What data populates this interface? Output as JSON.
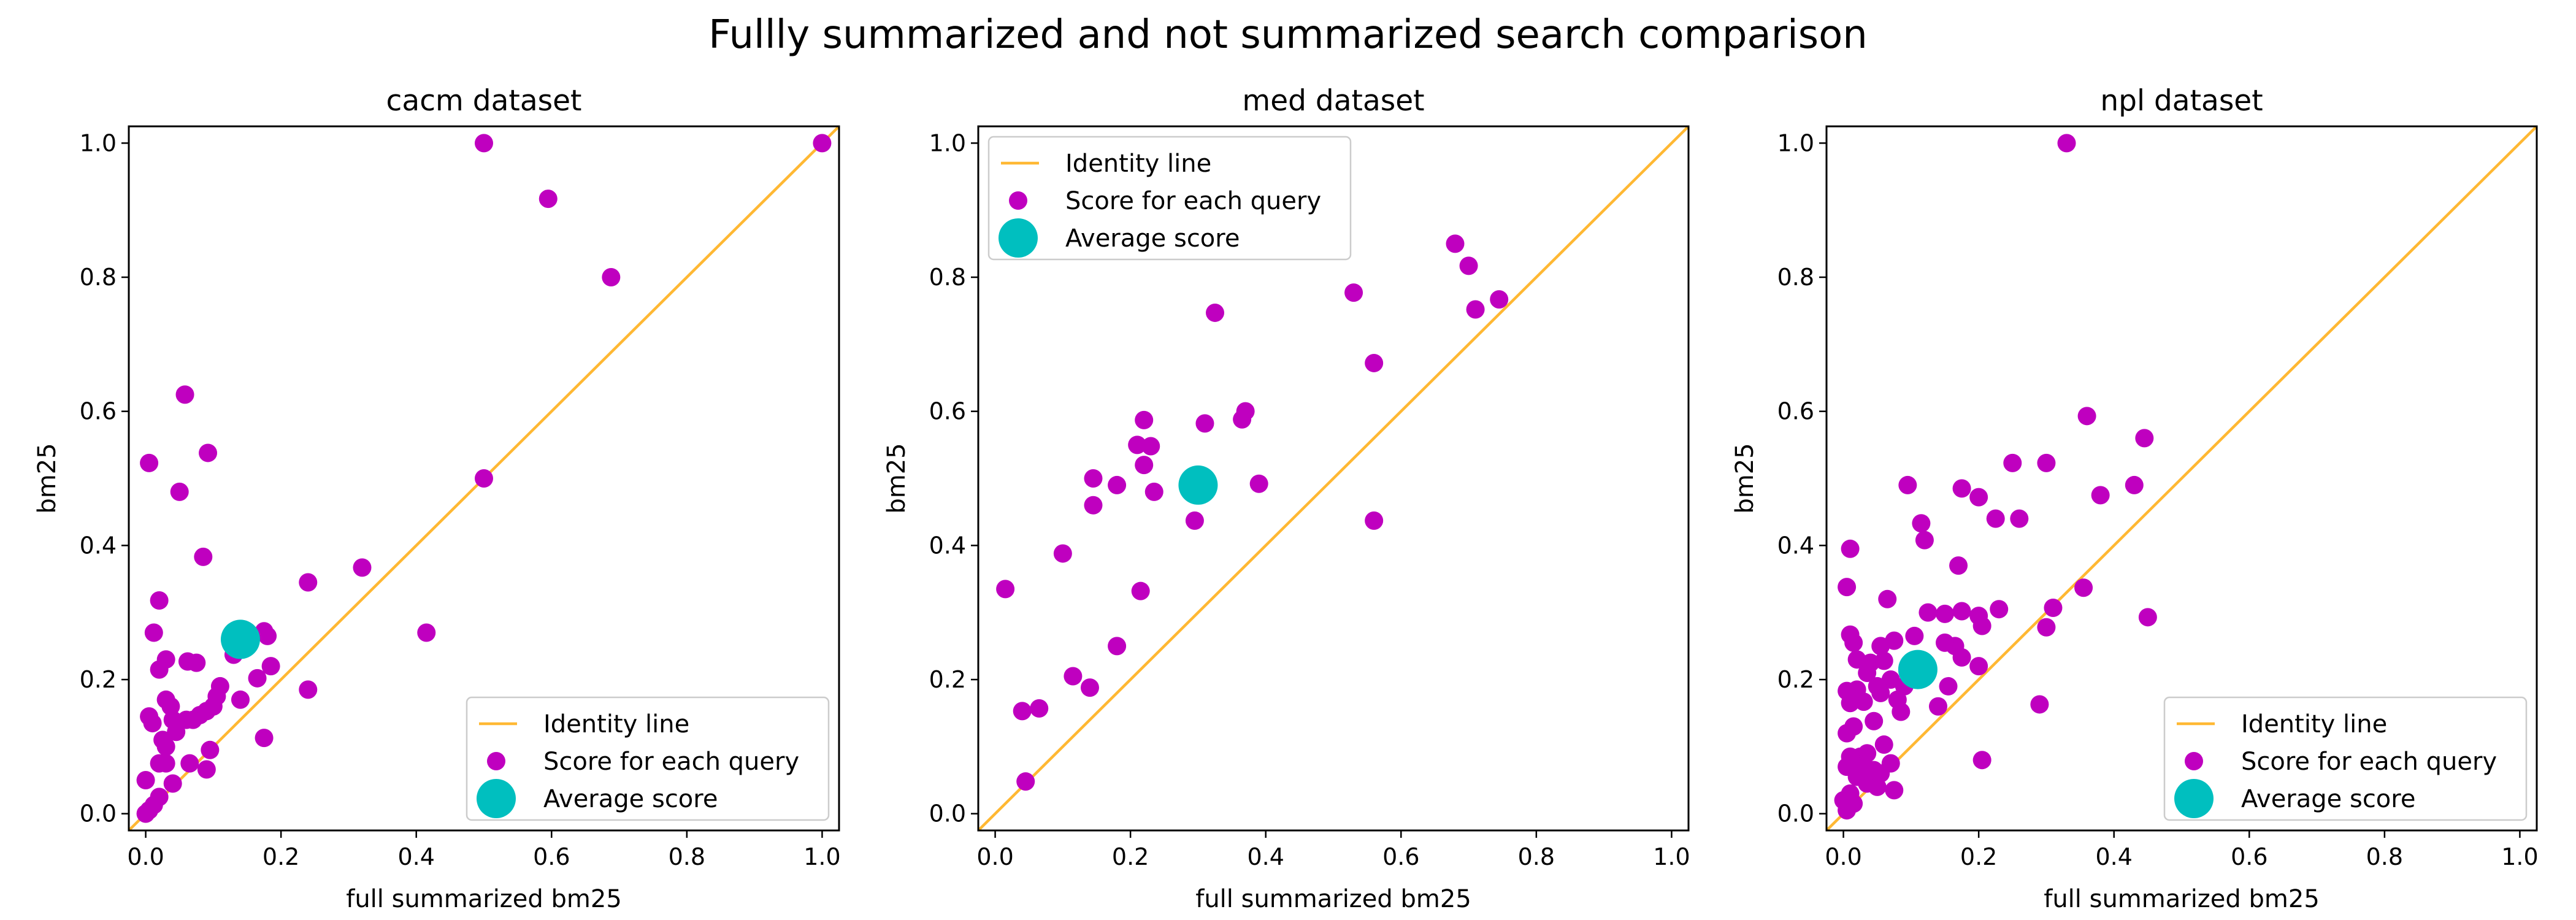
{
  "figure_title": "Fullly summarized and not summarized search comparison",
  "colors": {
    "identity": "#ffb833",
    "query": "#bf00bf",
    "average": "#00bfbf"
  },
  "legend_labels": {
    "identity": "Identity line",
    "query": "Score for each query",
    "average": "Average score"
  },
  "chart_data": [
    {
      "type": "scatter",
      "title": "cacm dataset",
      "xlabel": "full summarized bm25",
      "ylabel": "bm25",
      "xlim": [
        -0.025,
        1.025
      ],
      "ylim": [
        -0.025,
        1.025
      ],
      "xticks": [
        "0.0",
        "0.2",
        "0.4",
        "0.6",
        "0.8",
        "1.0"
      ],
      "yticks": [
        "0.0",
        "0.2",
        "0.4",
        "0.6",
        "0.8",
        "1.0"
      ],
      "legend_position": "lower right",
      "identity_line": [
        [
          -0.025,
          -0.025
        ],
        [
          1.025,
          1.025
        ]
      ],
      "average": [
        0.14,
        0.26
      ],
      "points": [
        [
          0.5,
          1.0
        ],
        [
          0.595,
          0.917
        ],
        [
          0.688,
          0.8
        ],
        [
          1.0,
          1.0
        ],
        [
          0.5,
          0.5
        ],
        [
          0.058,
          0.625
        ],
        [
          0.005,
          0.523
        ],
        [
          0.05,
          0.48
        ],
        [
          0.092,
          0.538
        ],
        [
          0.085,
          0.383
        ],
        [
          0.32,
          0.367
        ],
        [
          0.24,
          0.345
        ],
        [
          0.415,
          0.27
        ],
        [
          0.02,
          0.318
        ],
        [
          0.012,
          0.27
        ],
        [
          0.03,
          0.23
        ],
        [
          0.062,
          0.227
        ],
        [
          0.075,
          0.225
        ],
        [
          0.02,
          0.215
        ],
        [
          0.13,
          0.237
        ],
        [
          0.175,
          0.272
        ],
        [
          0.18,
          0.265
        ],
        [
          0.185,
          0.22
        ],
        [
          0.165,
          0.202
        ],
        [
          0.24,
          0.185
        ],
        [
          0.11,
          0.19
        ],
        [
          0.14,
          0.17
        ],
        [
          0.03,
          0.17
        ],
        [
          0.037,
          0.16
        ],
        [
          0.005,
          0.145
        ],
        [
          0.01,
          0.135
        ],
        [
          0.04,
          0.14
        ],
        [
          0.06,
          0.14
        ],
        [
          0.07,
          0.14
        ],
        [
          0.08,
          0.147
        ],
        [
          0.09,
          0.153
        ],
        [
          0.1,
          0.16
        ],
        [
          0.105,
          0.175
        ],
        [
          0.045,
          0.122
        ],
        [
          0.025,
          0.11
        ],
        [
          0.03,
          0.1
        ],
        [
          0.175,
          0.113
        ],
        [
          0.095,
          0.095
        ],
        [
          0.02,
          0.075
        ],
        [
          0.03,
          0.075
        ],
        [
          0.065,
          0.075
        ],
        [
          0.09,
          0.066
        ],
        [
          0.0,
          0.05
        ],
        [
          0.04,
          0.045
        ],
        [
          0.02,
          0.025
        ],
        [
          0.012,
          0.013
        ],
        [
          0.005,
          0.005
        ],
        [
          0.0,
          0.0
        ]
      ]
    },
    {
      "type": "scatter",
      "title": "med dataset",
      "xlabel": "full summarized bm25",
      "ylabel": "bm25",
      "xlim": [
        -0.025,
        1.025
      ],
      "ylim": [
        -0.025,
        1.025
      ],
      "xticks": [
        "0.0",
        "0.2",
        "0.4",
        "0.6",
        "0.8",
        "1.0"
      ],
      "yticks": [
        "0.0",
        "0.2",
        "0.4",
        "0.6",
        "0.8",
        "1.0"
      ],
      "legend_position": "upper left",
      "identity_line": [
        [
          -0.025,
          -0.025
        ],
        [
          1.025,
          1.025
        ]
      ],
      "average": [
        0.3,
        0.49
      ],
      "points": [
        [
          0.68,
          0.85
        ],
        [
          0.7,
          0.817
        ],
        [
          0.745,
          0.767
        ],
        [
          0.71,
          0.752
        ],
        [
          0.53,
          0.777
        ],
        [
          0.325,
          0.747
        ],
        [
          0.56,
          0.672
        ],
        [
          0.37,
          0.6
        ],
        [
          0.365,
          0.588
        ],
        [
          0.31,
          0.582
        ],
        [
          0.22,
          0.587
        ],
        [
          0.21,
          0.55
        ],
        [
          0.23,
          0.548
        ],
        [
          0.22,
          0.52
        ],
        [
          0.145,
          0.5
        ],
        [
          0.18,
          0.49
        ],
        [
          0.235,
          0.48
        ],
        [
          0.39,
          0.492
        ],
        [
          0.145,
          0.46
        ],
        [
          0.295,
          0.437
        ],
        [
          0.56,
          0.437
        ],
        [
          0.1,
          0.388
        ],
        [
          0.015,
          0.335
        ],
        [
          0.215,
          0.332
        ],
        [
          0.18,
          0.25
        ],
        [
          0.115,
          0.205
        ],
        [
          0.14,
          0.188
        ],
        [
          0.065,
          0.157
        ],
        [
          0.04,
          0.153
        ],
        [
          0.045,
          0.048
        ]
      ]
    },
    {
      "type": "scatter",
      "title": "npl dataset",
      "xlabel": "full summarized bm25",
      "ylabel": "bm25",
      "xlim": [
        -0.025,
        1.025
      ],
      "ylim": [
        -0.025,
        1.025
      ],
      "xticks": [
        "0.0",
        "0.2",
        "0.4",
        "0.6",
        "0.8",
        "1.0"
      ],
      "yticks": [
        "0.0",
        "0.2",
        "0.4",
        "0.6",
        "0.8",
        "1.0"
      ],
      "legend_position": "lower right",
      "identity_line": [
        [
          -0.025,
          -0.025
        ],
        [
          1.025,
          1.025
        ]
      ],
      "average": [
        0.11,
        0.215
      ],
      "points": [
        [
          0.33,
          1.0
        ],
        [
          0.36,
          0.593
        ],
        [
          0.445,
          0.56
        ],
        [
          0.3,
          0.523
        ],
        [
          0.25,
          0.523
        ],
        [
          0.095,
          0.49
        ],
        [
          0.175,
          0.485
        ],
        [
          0.2,
          0.472
        ],
        [
          0.38,
          0.475
        ],
        [
          0.43,
          0.49
        ],
        [
          0.225,
          0.44
        ],
        [
          0.26,
          0.44
        ],
        [
          0.115,
          0.433
        ],
        [
          0.12,
          0.408
        ],
        [
          0.01,
          0.395
        ],
        [
          0.17,
          0.37
        ],
        [
          0.005,
          0.338
        ],
        [
          0.065,
          0.32
        ],
        [
          0.355,
          0.337
        ],
        [
          0.31,
          0.307
        ],
        [
          0.3,
          0.278
        ],
        [
          0.45,
          0.293
        ],
        [
          0.23,
          0.305
        ],
        [
          0.2,
          0.295
        ],
        [
          0.175,
          0.302
        ],
        [
          0.15,
          0.298
        ],
        [
          0.125,
          0.3
        ],
        [
          0.01,
          0.267
        ],
        [
          0.015,
          0.255
        ],
        [
          0.055,
          0.25
        ],
        [
          0.075,
          0.258
        ],
        [
          0.105,
          0.265
        ],
        [
          0.165,
          0.25
        ],
        [
          0.205,
          0.28
        ],
        [
          0.15,
          0.255
        ],
        [
          0.02,
          0.23
        ],
        [
          0.04,
          0.225
        ],
        [
          0.06,
          0.228
        ],
        [
          0.035,
          0.21
        ],
        [
          0.07,
          0.2
        ],
        [
          0.09,
          0.19
        ],
        [
          0.05,
          0.19
        ],
        [
          0.02,
          0.185
        ],
        [
          0.005,
          0.183
        ],
        [
          0.01,
          0.165
        ],
        [
          0.03,
          0.167
        ],
        [
          0.055,
          0.18
        ],
        [
          0.08,
          0.17
        ],
        [
          0.14,
          0.16
        ],
        [
          0.155,
          0.19
        ],
        [
          0.175,
          0.233
        ],
        [
          0.2,
          0.22
        ],
        [
          0.29,
          0.163
        ],
        [
          0.085,
          0.152
        ],
        [
          0.045,
          0.138
        ],
        [
          0.015,
          0.13
        ],
        [
          0.005,
          0.12
        ],
        [
          0.06,
          0.103
        ],
        [
          0.035,
          0.09
        ],
        [
          0.025,
          0.085
        ],
        [
          0.01,
          0.085
        ],
        [
          0.005,
          0.07
        ],
        [
          0.03,
          0.07
        ],
        [
          0.045,
          0.065
        ],
        [
          0.055,
          0.06
        ],
        [
          0.07,
          0.075
        ],
        [
          0.205,
          0.08
        ],
        [
          0.02,
          0.055
        ],
        [
          0.035,
          0.045
        ],
        [
          0.05,
          0.04
        ],
        [
          0.075,
          0.035
        ],
        [
          0.01,
          0.03
        ],
        [
          0.0,
          0.02
        ],
        [
          0.015,
          0.015
        ],
        [
          0.005,
          0.005
        ]
      ]
    }
  ]
}
